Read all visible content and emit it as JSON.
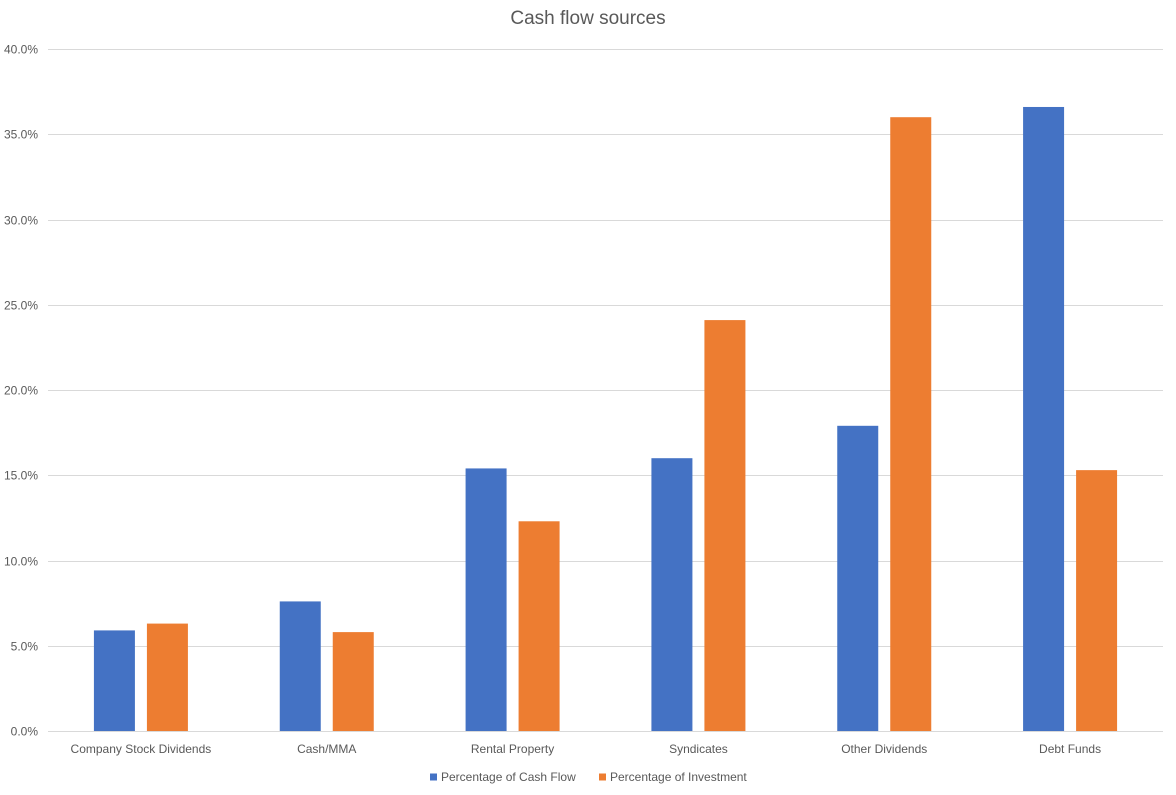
{
  "chart_data": {
    "type": "bar",
    "title": "Cash flow sources",
    "xlabel": "",
    "ylabel": "",
    "categories": [
      "Company Stock Dividends",
      "Cash/MMA",
      "Rental Property",
      "Syndicates",
      "Other Dividends",
      "Debt Funds"
    ],
    "series": [
      {
        "name": "Percentage of Cash Flow",
        "color": "#4472C4",
        "values": [
          5.9,
          7.6,
          15.4,
          16.0,
          17.9,
          36.6
        ]
      },
      {
        "name": "Percentage of Investment",
        "color": "#ED7D31",
        "values": [
          6.3,
          5.8,
          12.3,
          24.1,
          36.0,
          15.3
        ]
      }
    ],
    "ylim": [
      0,
      40
    ],
    "yticks": [
      0,
      5,
      10,
      15,
      20,
      25,
      30,
      35,
      40
    ],
    "ytick_labels": [
      "0.0%",
      "5.0%",
      "10.0%",
      "15.0%",
      "20.0%",
      "25.0%",
      "30.0%",
      "35.0%",
      "40.0%"
    ],
    "grid": true,
    "legend_position": "bottom"
  }
}
